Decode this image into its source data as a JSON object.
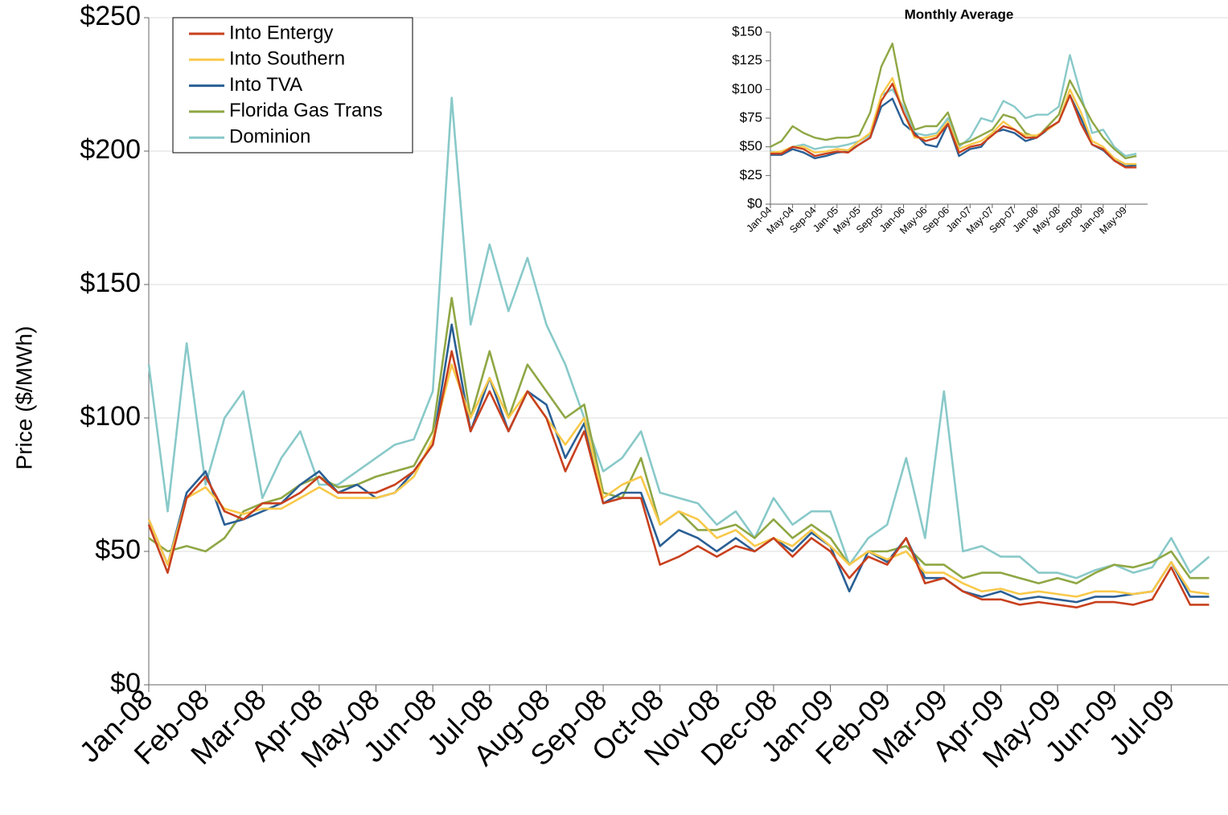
{
  "chart_data": [
    {
      "type": "line",
      "y_label": "Price ($/MWh)",
      "legend": "upper left",
      "grid": true,
      "ylim": [
        0,
        250
      ],
      "yticks": [
        {
          "value": 0,
          "label": "$0"
        },
        {
          "value": 50,
          "label": "$50"
        },
        {
          "value": 100,
          "label": "$100"
        },
        {
          "value": 150,
          "label": "$150"
        },
        {
          "value": 200,
          "label": "$200"
        },
        {
          "value": 250,
          "label": "$250"
        }
      ],
      "categories": [
        "Jan-08",
        null,
        null,
        "Feb-08",
        null,
        null,
        "Mar-08",
        null,
        null,
        "Apr-08",
        null,
        null,
        "May-08",
        null,
        null,
        "Jun-08",
        null,
        null,
        "Jul-08",
        null,
        null,
        "Aug-08",
        null,
        null,
        "Sep-08",
        null,
        null,
        "Oct-08",
        null,
        null,
        "Nov-08",
        null,
        null,
        "Dec-08",
        null,
        null,
        "Jan-09",
        null,
        null,
        "Feb-09",
        null,
        null,
        "Mar-09",
        null,
        null,
        "Apr-09",
        null,
        null,
        "May-09",
        null,
        null,
        "Jun-09",
        null,
        null,
        "Jul-09",
        null,
        null
      ],
      "series": [
        {
          "name": "Into Entergy",
          "color": "#c8401e",
          "values": [
            60,
            42,
            70,
            78,
            65,
            62,
            68,
            68,
            72,
            78,
            72,
            72,
            72,
            75,
            80,
            90,
            125,
            95,
            110,
            95,
            110,
            100,
            80,
            95,
            68,
            70,
            70,
            45,
            48,
            52,
            48,
            52,
            50,
            55,
            48,
            55,
            50,
            40,
            48,
            45,
            55,
            38,
            40,
            35,
            32,
            32,
            30,
            31,
            30,
            29,
            31,
            31,
            30,
            32,
            44,
            30,
            30
          ]
        },
        {
          "name": "Into Southern",
          "color": "#f9c94a",
          "values": [
            62,
            45,
            70,
            74,
            66,
            64,
            66,
            66,
            70,
            74,
            70,
            70,
            70,
            72,
            78,
            92,
            120,
            100,
            115,
            100,
            110,
            100,
            90,
            100,
            70,
            75,
            78,
            60,
            65,
            62,
            55,
            58,
            52,
            55,
            52,
            58,
            52,
            45,
            50,
            47,
            50,
            42,
            42,
            38,
            35,
            36,
            34,
            35,
            34,
            33,
            35,
            35,
            34,
            35,
            46,
            35,
            34
          ]
        },
        {
          "name": "Into TVA",
          "color": "#2a5f94",
          "values": [
            62,
            45,
            72,
            80,
            60,
            62,
            65,
            68,
            75,
            80,
            72,
            75,
            70,
            72,
            80,
            90,
            135,
            95,
            115,
            95,
            110,
            105,
            85,
            98,
            68,
            72,
            72,
            52,
            58,
            55,
            50,
            55,
            50,
            55,
            50,
            57,
            52,
            35,
            50,
            46,
            55,
            40,
            40,
            35,
            33,
            35,
            32,
            33,
            32,
            31,
            33,
            33,
            34,
            35,
            46,
            33,
            33
          ]
        },
        {
          "name": "Florida Gas Trans",
          "color": "#8fa744",
          "values": [
            55,
            50,
            52,
            50,
            55,
            65,
            68,
            70,
            75,
            78,
            74,
            75,
            78,
            80,
            82,
            95,
            145,
            100,
            125,
            100,
            120,
            110,
            100,
            105,
            72,
            70,
            85,
            60,
            65,
            58,
            58,
            60,
            55,
            62,
            55,
            60,
            55,
            45,
            50,
            50,
            52,
            45,
            45,
            40,
            42,
            42,
            40,
            38,
            40,
            38,
            42,
            45,
            44,
            46,
            50,
            40,
            40
          ]
        },
        {
          "name": "Dominion",
          "color": "#89c9c9",
          "values": [
            120,
            65,
            128,
            75,
            100,
            110,
            70,
            85,
            95,
            75,
            75,
            80,
            85,
            90,
            92,
            110,
            220,
            135,
            165,
            140,
            160,
            135,
            120,
            100,
            80,
            85,
            95,
            72,
            70,
            68,
            60,
            65,
            55,
            70,
            60,
            65,
            65,
            45,
            55,
            60,
            85,
            55,
            110,
            50,
            52,
            48,
            48,
            42,
            42,
            40,
            43,
            45,
            42,
            44,
            55,
            42,
            48
          ]
        }
      ]
    },
    {
      "type": "line",
      "title": "Monthly Average",
      "ylim": [
        0,
        150
      ],
      "yticks": [
        {
          "value": 0,
          "label": "$0"
        },
        {
          "value": 25,
          "label": "$25"
        },
        {
          "value": 50,
          "label": "$50"
        },
        {
          "value": 75,
          "label": "$75"
        },
        {
          "value": 100,
          "label": "$100"
        },
        {
          "value": 125,
          "label": "$125"
        },
        {
          "value": 150,
          "label": "$150"
        }
      ],
      "categories": [
        "Jan-04",
        null,
        "May-04",
        null,
        "Sep-04",
        null,
        "Jan-05",
        null,
        "May-05",
        null,
        "Sep-05",
        null,
        "Jan-06",
        null,
        "May-06",
        null,
        "Sep-06",
        null,
        "Jan-07",
        null,
        "May-07",
        null,
        "Sep-07",
        null,
        "Jan-08",
        null,
        "May-08",
        null,
        "Sep-08",
        null,
        "Jan-09",
        null,
        "May-09",
        null
      ],
      "series": [
        {
          "name": "Into Entergy",
          "color": "#c8401e",
          "values": [
            44,
            44,
            50,
            48,
            42,
            44,
            46,
            45,
            52,
            58,
            90,
            105,
            80,
            60,
            55,
            58,
            70,
            45,
            50,
            52,
            60,
            68,
            65,
            58,
            58,
            66,
            72,
            95,
            70,
            52,
            48,
            38,
            32,
            32
          ]
        },
        {
          "name": "Into Southern",
          "color": "#f9c94a",
          "values": [
            45,
            46,
            50,
            50,
            45,
            46,
            48,
            47,
            55,
            62,
            95,
            110,
            80,
            58,
            58,
            60,
            72,
            48,
            52,
            55,
            62,
            72,
            65,
            60,
            60,
            65,
            72,
            100,
            80,
            55,
            50,
            40,
            35,
            35
          ]
        },
        {
          "name": "Into TVA",
          "color": "#2a5f94",
          "values": [
            43,
            43,
            48,
            45,
            40,
            42,
            45,
            46,
            52,
            58,
            85,
            92,
            70,
            62,
            52,
            50,
            70,
            42,
            48,
            50,
            62,
            65,
            62,
            55,
            58,
            65,
            72,
            95,
            75,
            52,
            47,
            38,
            33,
            34
          ]
        },
        {
          "name": "Florida Gas Trans",
          "color": "#8fa744",
          "values": [
            50,
            55,
            68,
            62,
            58,
            56,
            58,
            58,
            60,
            80,
            120,
            140,
            90,
            65,
            68,
            68,
            80,
            52,
            55,
            60,
            65,
            78,
            75,
            62,
            58,
            68,
            78,
            108,
            90,
            72,
            58,
            48,
            40,
            42
          ]
        },
        {
          "name": "Dominion",
          "color": "#89c9c9",
          "values": [
            46,
            45,
            50,
            52,
            48,
            50,
            50,
            52,
            55,
            60,
            95,
            100,
            85,
            62,
            60,
            62,
            75,
            50,
            58,
            75,
            72,
            90,
            85,
            75,
            78,
            78,
            85,
            130,
            95,
            62,
            65,
            50,
            42,
            44
          ]
        }
      ]
    }
  ]
}
